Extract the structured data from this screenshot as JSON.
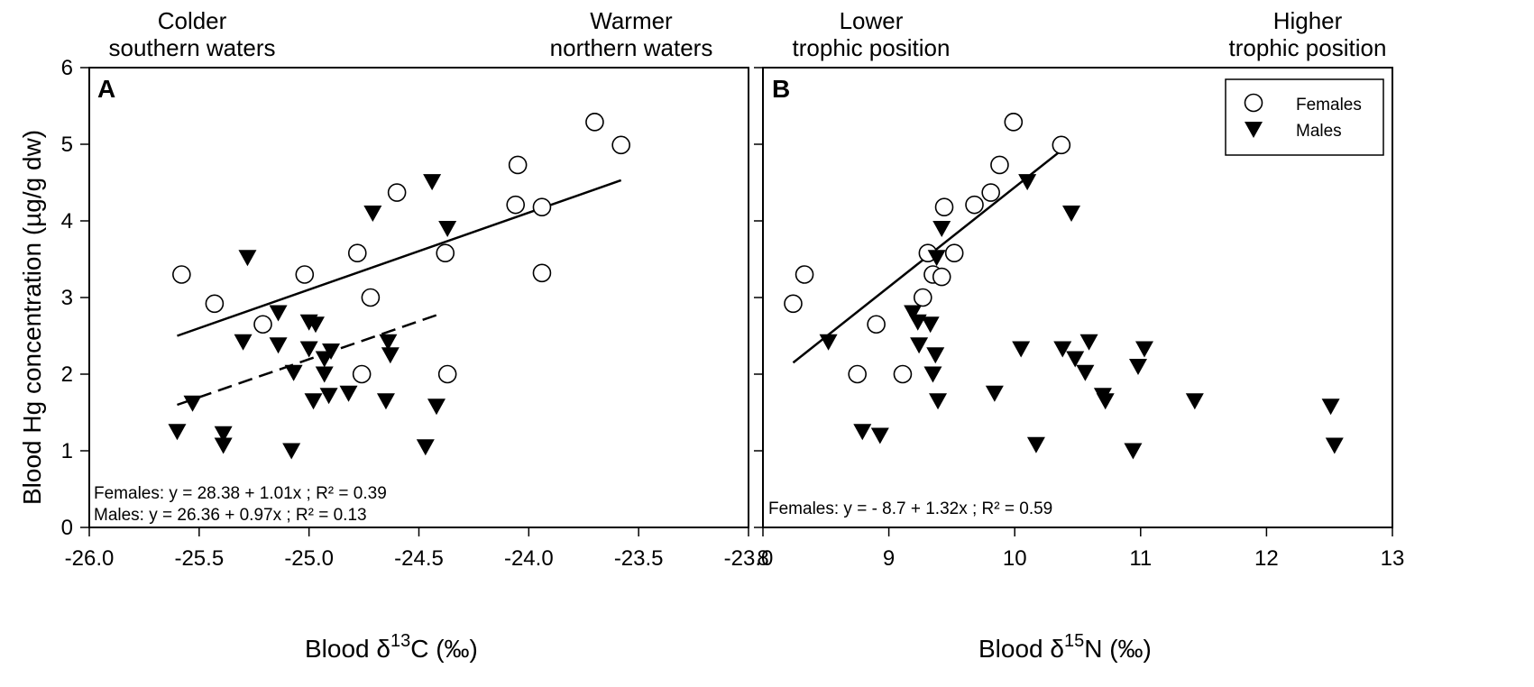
{
  "figure": {
    "y_axis_label": "Blood Hg concentration (µg/g dw)",
    "panelA": {
      "letter": "A",
      "x_label_prefix": "Blood δ",
      "x_label_sup": "13",
      "x_label_suffix": "C (‰)",
      "header_left": "Colder\nsouthern waters",
      "header_right": "Warmer\nnorthern waters",
      "eq_females": "Females: y = 28.38 + 1.01x ; R² = 0.39",
      "eq_males": "Males: y = 26.36 + 0.97x ; R² = 0.13"
    },
    "panelB": {
      "letter": "B",
      "x_label_prefix": "Blood δ",
      "x_label_sup": "15",
      "x_label_suffix": "N (‰)",
      "header_left": "Lower\ntrophic position",
      "header_right": "Higher\ntrophic position",
      "eq_females": "Females: y = - 8.7 + 1.32x ; R² = 0.59",
      "legend": {
        "females": "Females",
        "males": "Males"
      }
    }
  },
  "chart_data": [
    {
      "type": "scatter",
      "panel": "A",
      "xlim": [
        -26.0,
        -23.0
      ],
      "ylim": [
        0,
        6
      ],
      "x_ticks": [
        -26.0,
        -25.5,
        -25.0,
        -24.5,
        -24.0,
        -23.5,
        -23.0
      ],
      "x_tick_labels": [
        "-26.0",
        "-25.5",
        "-25.0",
        "-24.5",
        "-24.0",
        "-23.5",
        "-23.0"
      ],
      "y_ticks": [
        0,
        1,
        2,
        3,
        4,
        5,
        6
      ],
      "y_tick_labels": [
        "0",
        "1",
        "2",
        "3",
        "4",
        "5",
        "6"
      ],
      "grid": false,
      "series": [
        {
          "name": "Females",
          "marker": "open-circle",
          "points": [
            [
              -25.58,
              3.3
            ],
            [
              -25.43,
              2.92
            ],
            [
              -25.21,
              2.65
            ],
            [
              -25.02,
              3.3
            ],
            [
              -24.78,
              3.58
            ],
            [
              -24.76,
              2.0
            ],
            [
              -24.72,
              3.0
            ],
            [
              -24.6,
              4.37
            ],
            [
              -24.38,
              3.58
            ],
            [
              -24.37,
              2.0
            ],
            [
              -24.05,
              4.73
            ],
            [
              -24.06,
              4.21
            ],
            [
              -23.94,
              4.18
            ],
            [
              -23.94,
              3.32
            ],
            [
              -23.7,
              5.29
            ],
            [
              -23.58,
              4.99
            ]
          ]
        },
        {
          "name": "Males",
          "marker": "filled-triangle-down",
          "points": [
            [
              -25.6,
              1.25
            ],
            [
              -25.53,
              1.62
            ],
            [
              -25.39,
              1.22
            ],
            [
              -25.39,
              1.07
            ],
            [
              -25.3,
              2.42
            ],
            [
              -25.28,
              3.52
            ],
            [
              -25.14,
              2.38
            ],
            [
              -25.14,
              2.8
            ],
            [
              -25.07,
              2.02
            ],
            [
              -25.08,
              1.0
            ],
            [
              -25.0,
              2.33
            ],
            [
              -25.0,
              2.68
            ],
            [
              -24.97,
              2.65
            ],
            [
              -24.98,
              1.65
            ],
            [
              -24.93,
              2.0
            ],
            [
              -24.93,
              2.2
            ],
            [
              -24.91,
              1.72
            ],
            [
              -24.9,
              2.3
            ],
            [
              -24.82,
              1.75
            ],
            [
              -24.71,
              4.1
            ],
            [
              -24.65,
              1.65
            ],
            [
              -24.64,
              2.42
            ],
            [
              -24.63,
              2.25
            ],
            [
              -24.47,
              1.05
            ],
            [
              -24.44,
              4.51
            ],
            [
              -24.42,
              1.58
            ],
            [
              -24.37,
              3.9
            ]
          ]
        }
      ],
      "fits": [
        {
          "name": "Females",
          "style": "solid",
          "x": [
            -25.6,
            -23.58
          ],
          "y": [
            2.5,
            4.53
          ]
        },
        {
          "name": "Males",
          "style": "dashed",
          "x": [
            -25.6,
            -24.41
          ],
          "y": [
            1.6,
            2.78
          ]
        }
      ]
    },
    {
      "type": "scatter",
      "panel": "B",
      "xlim": [
        8,
        13
      ],
      "ylim": [
        0,
        6
      ],
      "x_ticks": [
        8,
        9,
        10,
        11,
        12,
        13
      ],
      "x_tick_labels": [
        "8",
        "9",
        "10",
        "11",
        "12",
        "13"
      ],
      "y_ticks": [
        0,
        1,
        2,
        3,
        4,
        5,
        6
      ],
      "y_tick_labels": [
        "",
        "",
        "",
        "",
        "",
        "",
        ""
      ],
      "grid": false,
      "legend_position": "top-right",
      "series": [
        {
          "name": "Females",
          "marker": "open-circle",
          "points": [
            [
              8.24,
              2.92
            ],
            [
              8.33,
              3.3
            ],
            [
              8.75,
              2.0
            ],
            [
              8.9,
              2.65
            ],
            [
              9.11,
              2.0
            ],
            [
              9.27,
              3.0
            ],
            [
              9.31,
              3.58
            ],
            [
              9.35,
              3.3
            ],
            [
              9.42,
              3.27
            ],
            [
              9.44,
              4.18
            ],
            [
              9.52,
              3.58
            ],
            [
              9.68,
              4.21
            ],
            [
              9.81,
              4.37
            ],
            [
              9.88,
              4.73
            ],
            [
              9.99,
              5.29
            ],
            [
              10.37,
              4.99
            ]
          ]
        },
        {
          "name": "Males",
          "marker": "filled-triangle-down",
          "points": [
            [
              8.52,
              2.42
            ],
            [
              8.79,
              1.25
            ],
            [
              8.93,
              1.2
            ],
            [
              9.19,
              2.8
            ],
            [
              9.23,
              2.68
            ],
            [
              9.24,
              2.38
            ],
            [
              9.33,
              2.65
            ],
            [
              9.35,
              2.0
            ],
            [
              9.37,
              2.25
            ],
            [
              9.38,
              3.52
            ],
            [
              9.39,
              1.65
            ],
            [
              9.42,
              3.9
            ],
            [
              9.84,
              1.75
            ],
            [
              10.05,
              2.33
            ],
            [
              10.1,
              4.51
            ],
            [
              10.17,
              1.08
            ],
            [
              10.38,
              2.33
            ],
            [
              10.45,
              4.1
            ],
            [
              10.48,
              2.2
            ],
            [
              10.56,
              2.02
            ],
            [
              10.59,
              2.42
            ],
            [
              10.7,
              1.72
            ],
            [
              10.72,
              1.65
            ],
            [
              10.94,
              1.0
            ],
            [
              10.98,
              2.1
            ],
            [
              11.03,
              2.33
            ],
            [
              11.43,
              1.65
            ],
            [
              12.51,
              1.58
            ],
            [
              12.54,
              1.07
            ]
          ]
        }
      ],
      "fits": [
        {
          "name": "Females",
          "style": "solid",
          "x": [
            8.24,
            10.37
          ],
          "y": [
            2.15,
            4.92
          ]
        }
      ]
    }
  ]
}
